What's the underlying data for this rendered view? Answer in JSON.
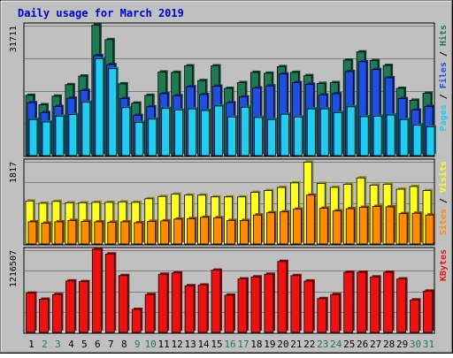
{
  "chart_data": {
    "type": "bar",
    "title": "Daily usage for March 2019",
    "categories": [
      "1",
      "2",
      "3",
      "4",
      "5",
      "6",
      "7",
      "8",
      "9",
      "10",
      "11",
      "12",
      "13",
      "14",
      "15",
      "16",
      "17",
      "18",
      "19",
      "20",
      "21",
      "22",
      "23",
      "24",
      "25",
      "26",
      "27",
      "28",
      "29",
      "30",
      "31"
    ],
    "weekend_days": [
      "2",
      "3",
      "9",
      "10",
      "16",
      "17",
      "23",
      "24",
      "30",
      "31"
    ],
    "colors": {
      "hits": "#1e7a52",
      "files": "#1f4ee0",
      "pages": "#22ccee",
      "visits": "#ffff22",
      "sites": "#ff8c00",
      "kbytes": "#ee1111",
      "weekday_label": "#000000",
      "weekend_label": "#1e7a52",
      "title": "#0000cc",
      "panel_bg": "#c0c0c0"
    },
    "panels": [
      {
        "id": "requests",
        "max_label": "31711",
        "ylim": [
          0,
          31711
        ],
        "legend": [
          {
            "label": "Hits",
            "color": "#1e7a52"
          },
          {
            "label": "Files",
            "color": "#1f4ee0"
          },
          {
            "label": "Pages",
            "color": "#22ccee"
          }
        ],
        "series": [
          {
            "name": "Hits",
            "color": "#1e7a52",
            "values": [
              14700,
              12400,
              14500,
              17300,
              19400,
              31800,
              28300,
              17500,
              12800,
              14700,
              20400,
              20300,
              21900,
              18300,
              21900,
              16400,
              17800,
              20300,
              20100,
              21700,
              20300,
              19500,
              17600,
              17800,
              23300,
              25300,
              23200,
              22000,
              16400,
              13500,
              15200
            ]
          },
          {
            "name": "Files",
            "color": "#1f4ee0",
            "values": [
              12900,
              10500,
              12000,
              14000,
              15900,
              24400,
              22200,
              13900,
              9800,
              11900,
              15100,
              14600,
              16800,
              14900,
              16900,
              12900,
              14300,
              16500,
              17000,
              19900,
              17800,
              17400,
              14800,
              15100,
              20500,
              22900,
              21000,
              19000,
              13900,
              11100,
              12000
            ]
          },
          {
            "name": "Pages",
            "color": "#22ccee",
            "values": [
              8800,
              8200,
              9600,
              10000,
              13000,
              23600,
              21200,
              11700,
              8100,
              8900,
              11500,
              11100,
              11400,
              11000,
              12100,
              9400,
              11800,
              9300,
              8800,
              10100,
              9400,
              11400,
              11400,
              10500,
              11900,
              9500,
              9600,
              9900,
              8800,
              7400,
              7000
            ]
          }
        ]
      },
      {
        "id": "visitors",
        "max_label": "1817",
        "ylim": [
          0,
          1817
        ],
        "legend": [
          {
            "label": "Visits",
            "color": "#ffff22"
          },
          {
            "label": "Sites",
            "color": "#ff8c00"
          }
        ],
        "series": [
          {
            "name": "Visits",
            "color": "#ffff22",
            "values": [
              950,
              900,
              940,
              910,
              910,
              920,
              920,
              930,
              920,
              1000,
              1050,
              1100,
              1080,
              1080,
              1040,
              1040,
              1040,
              1140,
              1180,
              1250,
              1350,
              1810,
              1340,
              1250,
              1320,
              1460,
              1300,
              1320,
              1210,
              1270,
              1180
            ]
          },
          {
            "name": "Sites",
            "color": "#ff8c00",
            "values": [
              490,
              460,
              490,
              520,
              500,
              490,
              480,
              490,
              470,
              500,
              510,
              550,
              560,
              590,
              580,
              520,
              520,
              640,
              690,
              710,
              770,
              1080,
              790,
              730,
              780,
              810,
              830,
              820,
              670,
              680,
              640
            ]
          }
        ]
      },
      {
        "id": "kbytes",
        "max_label": "1216507",
        "ylim": [
          0,
          1216507
        ],
        "legend": [
          {
            "label": "KBytes",
            "color": "#ee1111"
          }
        ],
        "series": [
          {
            "name": "KBytes",
            "color": "#ee1111",
            "values": [
              580000,
              490000,
              560000,
              760000,
              750000,
              1230000,
              1160000,
              840000,
              340000,
              560000,
              860000,
              880000,
              690000,
              700000,
              920000,
              550000,
              790000,
              820000,
              860000,
              1050000,
              840000,
              760000,
              500000,
              560000,
              890000,
              890000,
              820000,
              890000,
              790000,
              480000,
              610000
            ]
          }
        ]
      }
    ]
  }
}
